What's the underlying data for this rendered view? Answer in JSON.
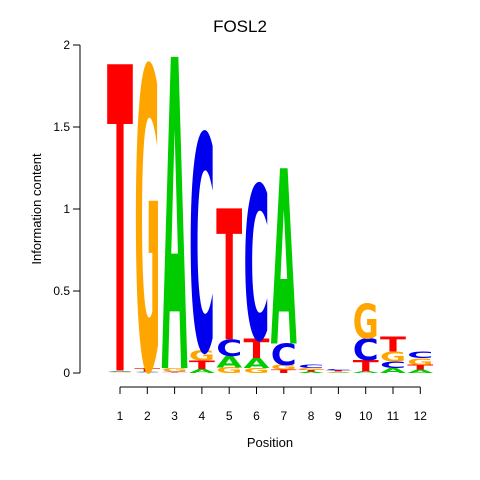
{
  "chart_data": {
    "type": "sequence-logo",
    "title": "FOSL2",
    "xlabel": "Position",
    "ylabel": "Information content",
    "ylim": [
      0,
      2
    ],
    "yticks": [
      0,
      0.5,
      1,
      1.5,
      2
    ],
    "ytick_labels": [
      "0",
      "0.5",
      "1",
      "1.5",
      "2"
    ],
    "positions": [
      "1",
      "2",
      "3",
      "4",
      "5",
      "6",
      "7",
      "8",
      "9",
      "10",
      "11",
      "12"
    ],
    "colors": {
      "A": "#00cc00",
      "C": "#0000ee",
      "G": "#ffa500",
      "T": "#ff0000"
    },
    "stacks": [
      [
        {
          "letter": "G",
          "value": 0.005
        },
        {
          "letter": "A",
          "value": 0.005
        },
        {
          "letter": "C",
          "value": 0.005
        },
        {
          "letter": "T",
          "value": 1.87
        }
      ],
      [
        {
          "letter": "C",
          "value": 0.005
        },
        {
          "letter": "A",
          "value": 0.005
        },
        {
          "letter": "T",
          "value": 0.02
        },
        {
          "letter": "G",
          "value": 1.84
        }
      ],
      [
        {
          "letter": "T",
          "value": 0.005
        },
        {
          "letter": "C",
          "value": 0.005
        },
        {
          "letter": "G",
          "value": 0.02
        },
        {
          "letter": "A",
          "value": 1.9
        }
      ],
      [
        {
          "letter": "T",
          "value": 0.05
        },
        {
          "letter": "A",
          "value": 0.025
        },
        {
          "letter": "G",
          "value": 0.065
        },
        {
          "letter": "C",
          "value": 1.32
        }
      ],
      [
        {
          "letter": "G",
          "value": 0.035
        },
        {
          "letter": "A",
          "value": 0.07
        },
        {
          "letter": "C",
          "value": 0.1
        },
        {
          "letter": "T",
          "value": 0.8
        }
      ],
      [
        {
          "letter": "G",
          "value": 0.03
        },
        {
          "letter": "A",
          "value": 0.06
        },
        {
          "letter": "T",
          "value": 0.12
        },
        {
          "letter": "C",
          "value": 0.94
        }
      ],
      [
        {
          "letter": "T",
          "value": 0.02
        },
        {
          "letter": "G",
          "value": 0.03
        },
        {
          "letter": "C",
          "value": 0.13
        },
        {
          "letter": "A",
          "value": 1.07
        }
      ],
      [
        {
          "letter": "A",
          "value": 0.008
        },
        {
          "letter": "T",
          "value": 0.01
        },
        {
          "letter": "G",
          "value": 0.012
        },
        {
          "letter": "C",
          "value": 0.02
        }
      ],
      [
        {
          "letter": "A",
          "value": 0.004
        },
        {
          "letter": "G",
          "value": 0.005
        },
        {
          "letter": "T",
          "value": 0.006
        },
        {
          "letter": "C",
          "value": 0.006
        }
      ],
      [
        {
          "letter": "A",
          "value": 0.01
        },
        {
          "letter": "T",
          "value": 0.07
        },
        {
          "letter": "C",
          "value": 0.13
        },
        {
          "letter": "G",
          "value": 0.21
        }
      ],
      [
        {
          "letter": "A",
          "value": 0.03
        },
        {
          "letter": "C",
          "value": 0.04
        },
        {
          "letter": "G",
          "value": 0.06
        },
        {
          "letter": "T",
          "value": 0.09
        }
      ],
      [
        {
          "letter": "A",
          "value": 0.02
        },
        {
          "letter": "T",
          "value": 0.03
        },
        {
          "letter": "G",
          "value": 0.04
        },
        {
          "letter": "C",
          "value": 0.04
        }
      ]
    ]
  }
}
